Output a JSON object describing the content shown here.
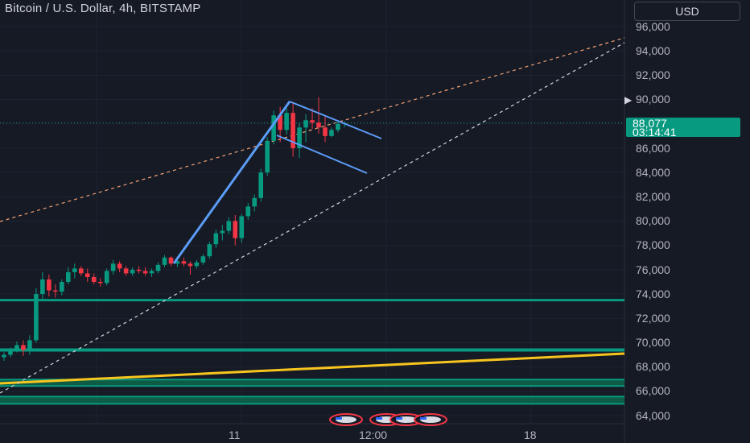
{
  "header": {
    "title": "Bitcoin / U.S. Dollar, 4h, BITSTAMP",
    "currency": "USD"
  },
  "price_axis": {
    "labels": [
      "96,000",
      "94,000",
      "92,000",
      "90,000",
      "88,000",
      "86,000",
      "84,000",
      "82,000",
      "80,000",
      "78,000",
      "76,000",
      "74,000",
      "72,000",
      "70,000",
      "68,000",
      "66,000",
      "64,000"
    ]
  },
  "time_axis": {
    "labels": [
      "11",
      "12:00",
      "18"
    ]
  },
  "last_price": {
    "value": "88,077",
    "countdown": "03:14:41",
    "color": "#089981"
  },
  "colors": {
    "background": "#161a25",
    "up_candle": "#089981",
    "down_candle": "#f23645",
    "support_line": "#089981",
    "trend_line_yellow": "#f7c51e",
    "flag_lines": "#5b9cf6",
    "dashed_orange": "#f0a173",
    "dashed_white": "#d1d4dc"
  },
  "icons": {
    "event_markers": "us-flag-icon",
    "price_alert": "arrow-right-icon"
  },
  "chart_data": {
    "type": "candlestick",
    "ylim": [
      64000,
      96000
    ],
    "y_axis_ticks": [
      96000,
      94000,
      92000,
      90000,
      88000,
      86000,
      84000,
      82000,
      80000,
      78000,
      76000,
      74000,
      72000,
      70000,
      68000,
      66000,
      64000
    ],
    "candles": [
      [
        68800,
        69200,
        68500,
        69000
      ],
      [
        69000,
        69600,
        68800,
        69400
      ],
      [
        69400,
        70100,
        69200,
        69800
      ],
      [
        69800,
        70200,
        68900,
        69400
      ],
      [
        69400,
        70600,
        69000,
        70200
      ],
      [
        70200,
        74500,
        70000,
        74000
      ],
      [
        74000,
        75800,
        73500,
        75200
      ],
      [
        75200,
        75600,
        73800,
        74300
      ],
      [
        74300,
        74800,
        73700,
        74200
      ],
      [
        74200,
        75200,
        73900,
        75000
      ],
      [
        75000,
        76200,
        74800,
        75800
      ],
      [
        75800,
        76500,
        75300,
        76100
      ],
      [
        76100,
        76300,
        75500,
        75700
      ],
      [
        75700,
        76100,
        75000,
        75400
      ],
      [
        75400,
        75700,
        74800,
        75000
      ],
      [
        75000,
        75300,
        74600,
        74900
      ],
      [
        74900,
        76100,
        74700,
        75900
      ],
      [
        75900,
        76800,
        75600,
        76500
      ],
      [
        76500,
        76700,
        75800,
        76100
      ],
      [
        76100,
        76300,
        75500,
        75700
      ],
      [
        75700,
        76200,
        75500,
        76000
      ],
      [
        76000,
        76300,
        75700,
        75900
      ],
      [
        75900,
        76200,
        75500,
        75700
      ],
      [
        75700,
        76100,
        75400,
        75900
      ],
      [
        75900,
        76600,
        75700,
        76400
      ],
      [
        76400,
        77200,
        76200,
        77000
      ],
      [
        77000,
        77100,
        76300,
        76500
      ],
      [
        76500,
        76900,
        76200,
        76700
      ],
      [
        76700,
        77000,
        76300,
        76500
      ],
      [
        76500,
        76700,
        75600,
        76300
      ],
      [
        76300,
        76800,
        76100,
        76600
      ],
      [
        76600,
        77300,
        76400,
        77100
      ],
      [
        77100,
        78300,
        76900,
        78100
      ],
      [
        78100,
        79300,
        77800,
        79000
      ],
      [
        79000,
        79700,
        78400,
        79200
      ],
      [
        79200,
        80300,
        78900,
        80000
      ],
      [
        80000,
        80500,
        78000,
        78600
      ],
      [
        78600,
        80600,
        78200,
        80400
      ],
      [
        80400,
        81500,
        80100,
        81200
      ],
      [
        81200,
        82200,
        80800,
        81900
      ],
      [
        81900,
        84300,
        81600,
        84000
      ],
      [
        84000,
        86900,
        83700,
        86600
      ],
      [
        86600,
        89100,
        86300,
        88700
      ],
      [
        88700,
        89400,
        86500,
        87500
      ],
      [
        87500,
        89300,
        87100,
        88900
      ],
      [
        88900,
        89800,
        85300,
        86000
      ],
      [
        86000,
        88100,
        85200,
        87700
      ],
      [
        87700,
        88800,
        86500,
        88300
      ],
      [
        88300,
        89300,
        87600,
        88100
      ],
      [
        88100,
        90200,
        87200,
        87700
      ],
      [
        87700,
        88600,
        86500,
        87000
      ],
      [
        87000,
        87700,
        86900,
        87500
      ],
      [
        87500,
        88300,
        87300,
        88000
      ],
      [
        88000,
        88200,
        87700,
        88077
      ]
    ],
    "horizontal_levels": [
      73500,
      69400,
      66700,
      65300
    ],
    "annotations": [
      "bull flag pole",
      "flag channel",
      "rising dashed trendlines",
      "yellow ascending support"
    ]
  }
}
